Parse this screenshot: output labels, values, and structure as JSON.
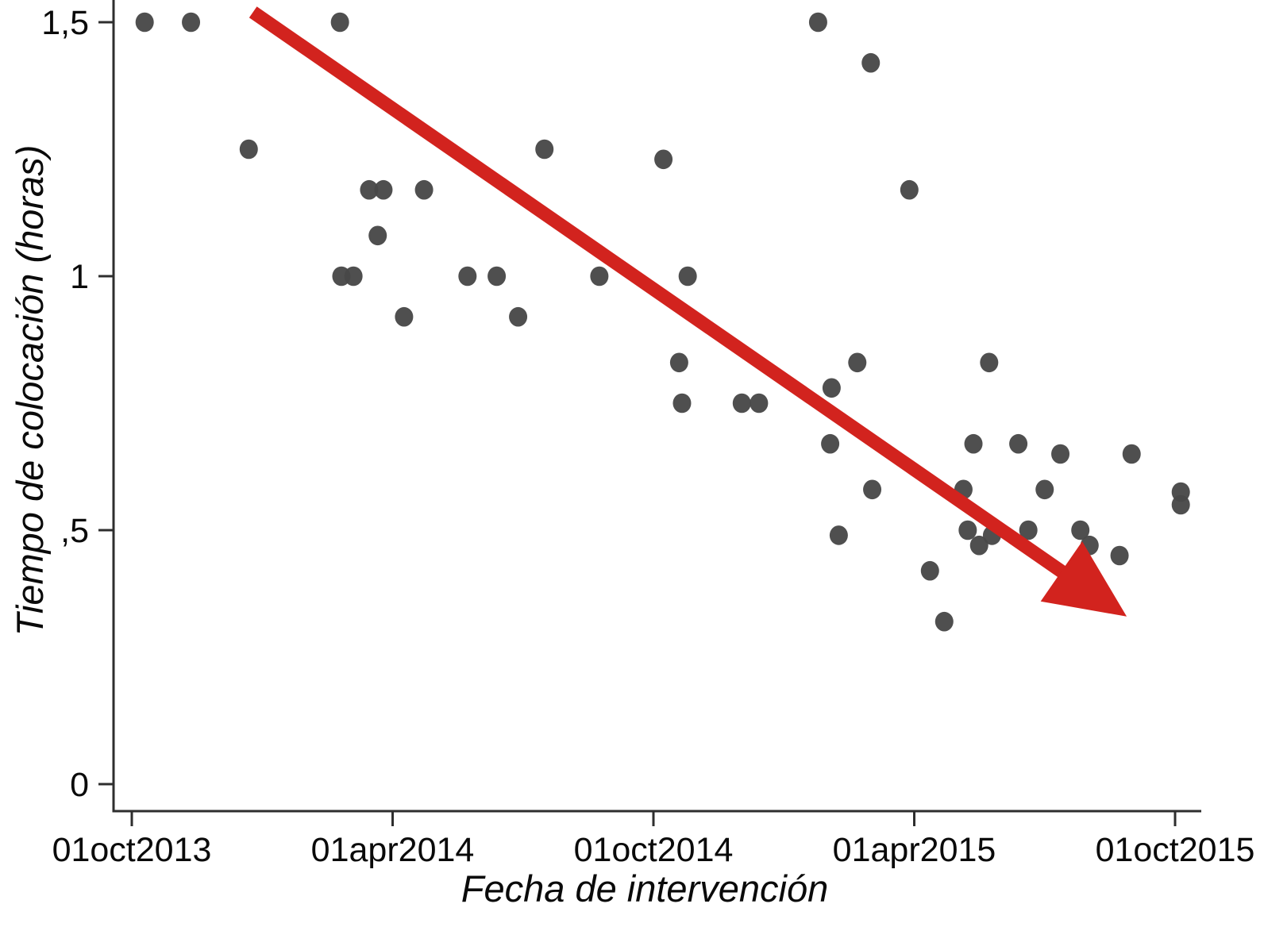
{
  "chart_data": {
    "type": "scatter",
    "title": "",
    "xlabel": "Fecha de intervención",
    "ylabel": "Tiempo de colocación (horas)",
    "x_axis": {
      "ticks": [
        {
          "date": "2013-10-01",
          "label": "01oct2013"
        },
        {
          "date": "2014-04-01",
          "label": "01apr2014"
        },
        {
          "date": "2014-10-01",
          "label": "01oct2014"
        },
        {
          "date": "2015-04-01",
          "label": "01apr2015"
        },
        {
          "date": "2015-10-01",
          "label": "01oct2015"
        }
      ],
      "range": [
        "2013-10-01",
        "2015-10-15"
      ]
    },
    "y_axis": {
      "ticks": [
        {
          "value": 1.5,
          "label": "1,5"
        },
        {
          "value": 1.0,
          "label": "1"
        },
        {
          "value": 0.5,
          "label": ",5"
        },
        {
          "value": 0.0,
          "label": "0"
        }
      ],
      "ylim": [
        0,
        1.55
      ],
      "grid": false
    },
    "points": [
      {
        "date": "2013-10-10",
        "hours": 1.5
      },
      {
        "date": "2013-11-12",
        "hours": 1.5
      },
      {
        "date": "2013-12-22",
        "hours": 1.25
      },
      {
        "date": "2014-02-25",
        "hours": 1.5
      },
      {
        "date": "2014-02-26",
        "hours": 1.0
      },
      {
        "date": "2014-03-04",
        "hours": 1.0
      },
      {
        "date": "2014-03-15",
        "hours": 1.17
      },
      {
        "date": "2014-03-21",
        "hours": 1.08
      },
      {
        "date": "2014-03-25",
        "hours": 1.17
      },
      {
        "date": "2014-04-09",
        "hours": 0.92
      },
      {
        "date": "2014-04-23",
        "hours": 1.17
      },
      {
        "date": "2014-05-23",
        "hours": 1.0
      },
      {
        "date": "2014-06-13",
        "hours": 1.0
      },
      {
        "date": "2014-06-28",
        "hours": 0.92
      },
      {
        "date": "2014-07-16",
        "hours": 1.25
      },
      {
        "date": "2014-08-24",
        "hours": 1.0
      },
      {
        "date": "2014-10-08",
        "hours": 1.23
      },
      {
        "date": "2014-10-19",
        "hours": 0.83
      },
      {
        "date": "2014-10-21",
        "hours": 0.75
      },
      {
        "date": "2014-10-25",
        "hours": 1.0
      },
      {
        "date": "2014-12-02",
        "hours": 0.75
      },
      {
        "date": "2014-12-14",
        "hours": 0.75
      },
      {
        "date": "2015-01-25",
        "hours": 1.5
      },
      {
        "date": "2015-02-03",
        "hours": 0.67
      },
      {
        "date": "2015-02-04",
        "hours": 0.78
      },
      {
        "date": "2015-02-09",
        "hours": 0.49
      },
      {
        "date": "2015-02-22",
        "hours": 0.83
      },
      {
        "date": "2015-03-01",
        "hours": 1.42
      },
      {
        "date": "2015-03-02",
        "hours": 0.58
      },
      {
        "date": "2015-03-28",
        "hours": 1.17
      },
      {
        "date": "2015-04-12",
        "hours": 0.42
      },
      {
        "date": "2015-04-22",
        "hours": 0.32
      },
      {
        "date": "2015-05-05",
        "hours": 0.58
      },
      {
        "date": "2015-05-08",
        "hours": 0.5
      },
      {
        "date": "2015-05-12",
        "hours": 0.67
      },
      {
        "date": "2015-05-16",
        "hours": 0.47
      },
      {
        "date": "2015-05-23",
        "hours": 0.83
      },
      {
        "date": "2015-05-25",
        "hours": 0.49
      },
      {
        "date": "2015-06-13",
        "hours": 0.67
      },
      {
        "date": "2015-06-20",
        "hours": 0.5
      },
      {
        "date": "2015-07-01",
        "hours": 0.58
      },
      {
        "date": "2015-07-12",
        "hours": 0.65
      },
      {
        "date": "2015-07-26",
        "hours": 0.5
      },
      {
        "date": "2015-08-02",
        "hours": 0.47
      },
      {
        "date": "2015-08-23",
        "hours": 0.45
      },
      {
        "date": "2015-09-01",
        "hours": 0.65
      },
      {
        "date": "2015-10-05",
        "hours": 0.575
      },
      {
        "date": "2015-10-05",
        "hours": 0.55
      }
    ],
    "trend_arrow": {
      "from": {
        "date": "2013-12-25",
        "hours": 1.52
      },
      "to": {
        "date": "2015-08-28",
        "hours": 0.33
      }
    },
    "colors": {
      "point": "#484848",
      "arrow": "#d2231e",
      "axis": "#2e2e2e",
      "text": "#0a0a0a",
      "background": "#ffffff"
    }
  }
}
